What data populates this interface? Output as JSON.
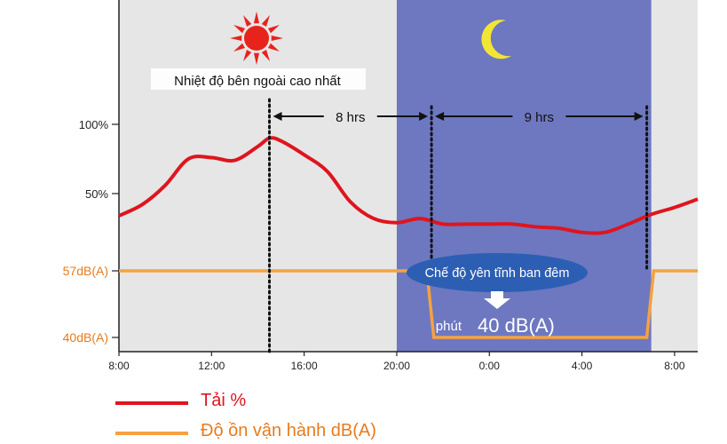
{
  "chart_data": {
    "type": "line",
    "x_ticks": [
      "8:00",
      "12:00",
      "16:00",
      "20:00",
      "0:00",
      "4:00",
      "8:00"
    ],
    "y_ticks_left": [
      "100%",
      "50%"
    ],
    "y_ticks_level": [
      "57dB(A)",
      "40dB(A)"
    ],
    "series": [
      {
        "name": "Tải  %",
        "color": "#e0141e",
        "points": [
          [
            8,
            34
          ],
          [
            9,
            42
          ],
          [
            10,
            56
          ],
          [
            11,
            75
          ],
          [
            12,
            76
          ],
          [
            13,
            74
          ],
          [
            14,
            84
          ],
          [
            14.5,
            90
          ],
          [
            15,
            88
          ],
          [
            16,
            78
          ],
          [
            17,
            66
          ],
          [
            18,
            44
          ],
          [
            19,
            32
          ],
          [
            20,
            29
          ],
          [
            21,
            32
          ],
          [
            22,
            28
          ],
          [
            23,
            28
          ],
          [
            24,
            28
          ],
          [
            25,
            28
          ],
          [
            26,
            26
          ],
          [
            27,
            25
          ],
          [
            28,
            22
          ],
          [
            29,
            22
          ],
          [
            30,
            28
          ],
          [
            31,
            35
          ],
          [
            32,
            40
          ],
          [
            33,
            46
          ]
        ]
      },
      {
        "name": "Độ ồn vận hành  dB(A)",
        "color": "#f5a23f",
        "points": [
          [
            8,
            57
          ],
          [
            21.3,
            57
          ],
          [
            21.6,
            40
          ],
          [
            30.8,
            40
          ],
          [
            31.1,
            57
          ],
          [
            33,
            57
          ]
        ]
      }
    ],
    "night_band": {
      "start": 20,
      "end": 31
    },
    "annotations": {
      "peak_label": "Nhiệt độ bên ngoài cao nhất",
      "span_1": "8 hrs",
      "span_2": "9 hrs",
      "mode_label": "Chế độ yên tĩnh ban đêm",
      "min_prefix": "phút",
      "min_value": "40 dB(A)"
    },
    "icons": {
      "day": "sun-icon",
      "night": "moon-icon"
    },
    "colors": {
      "band_day": "#e6e6e6",
      "band_night": "#6d78c0",
      "load_line": "#e0141e",
      "noise_line": "#f5a23f",
      "mode_ellipse": "#2c5fb4",
      "level_tick_text": "#e87b1d",
      "sun": "#e8231b",
      "moon": "#f3e535"
    }
  },
  "legend": [
    {
      "label": "Tải  %",
      "color": "#e0141e"
    },
    {
      "label": "Độ ồn vận hành  dB(A)",
      "color": "#f5a23f"
    }
  ]
}
